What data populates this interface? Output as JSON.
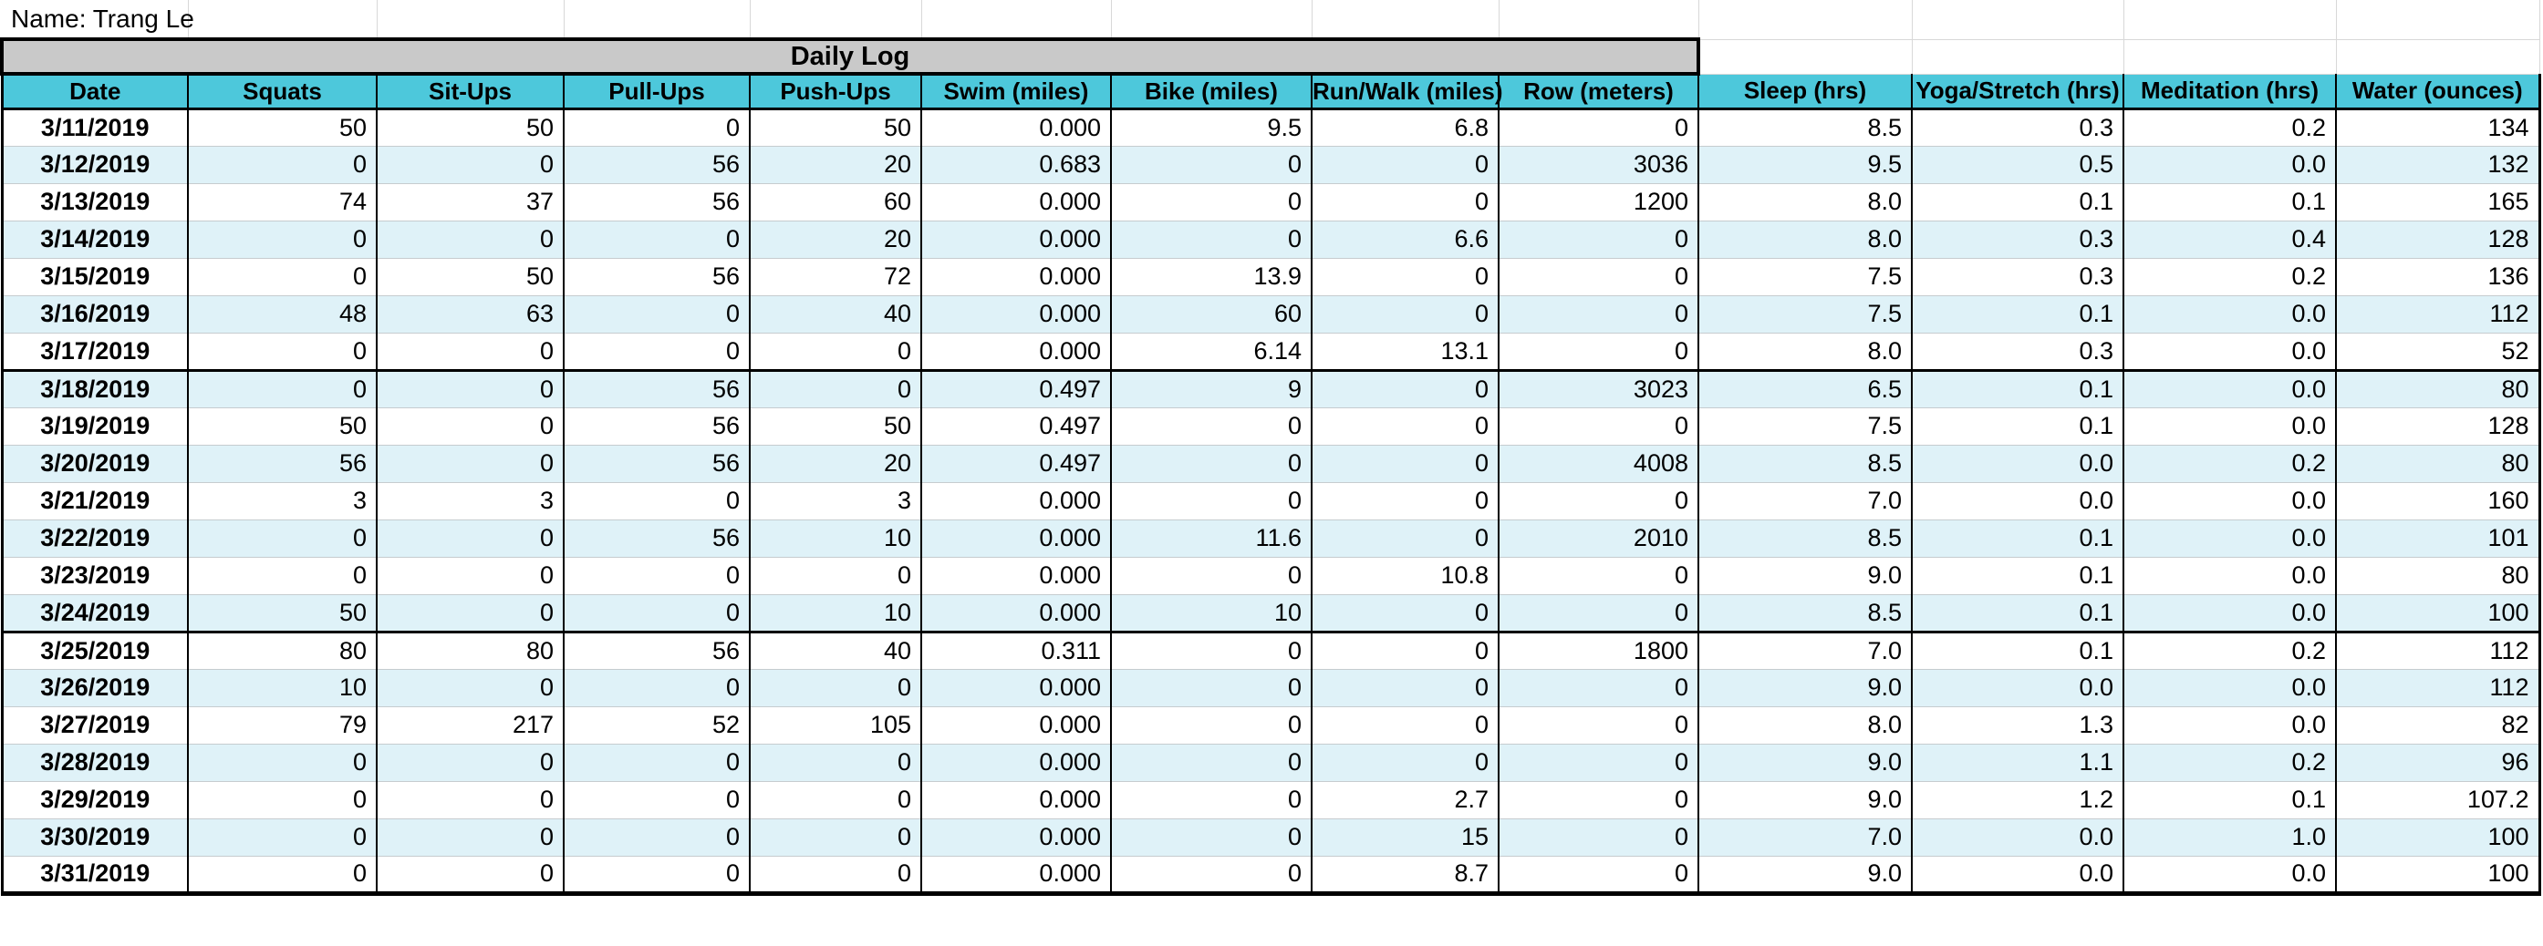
{
  "sheet": {
    "name_label": "Name: Trang Le",
    "title": "Daily Log"
  },
  "colors": {
    "header_fill": "#4DC8DB",
    "band_fill": "#DFF2F8",
    "title_fill": "#C9C9C9",
    "gridline": "#D8D8D8",
    "row_gridline": "#C6CCCF"
  },
  "table": {
    "title_span_columns": 9,
    "columns": [
      "Date",
      "Squats",
      "Sit-Ups",
      "Pull-Ups",
      "Push-Ups",
      "Swim (miles)",
      "Bike (miles)",
      "Run/Walk (miles)",
      "Row (meters)",
      "Sleep (hrs)",
      "Yoga/Stretch (hrs)",
      "Meditation (hrs)",
      "Water (ounces)"
    ],
    "rows": [
      {
        "date": "3/11/2019",
        "values": [
          "50",
          "50",
          "0",
          "50",
          "0.000",
          "9.5",
          "6.8",
          "0",
          "8.5",
          "0.3",
          "0.2",
          "134"
        ]
      },
      {
        "date": "3/12/2019",
        "values": [
          "0",
          "0",
          "56",
          "20",
          "0.683",
          "0",
          "0",
          "3036",
          "9.5",
          "0.5",
          "0.0",
          "132"
        ]
      },
      {
        "date": "3/13/2019",
        "values": [
          "74",
          "37",
          "56",
          "60",
          "0.000",
          "0",
          "0",
          "1200",
          "8.0",
          "0.1",
          "0.1",
          "165"
        ]
      },
      {
        "date": "3/14/2019",
        "values": [
          "0",
          "0",
          "0",
          "20",
          "0.000",
          "0",
          "6.6",
          "0",
          "8.0",
          "0.3",
          "0.4",
          "128"
        ]
      },
      {
        "date": "3/15/2019",
        "values": [
          "0",
          "50",
          "56",
          "72",
          "0.000",
          "13.9",
          "0",
          "0",
          "7.5",
          "0.3",
          "0.2",
          "136"
        ]
      },
      {
        "date": "3/16/2019",
        "values": [
          "48",
          "63",
          "0",
          "40",
          "0.000",
          "60",
          "0",
          "0",
          "7.5",
          "0.1",
          "0.0",
          "112"
        ]
      },
      {
        "date": "3/17/2019",
        "values": [
          "0",
          "0",
          "0",
          "0",
          "0.000",
          "6.14",
          "13.1",
          "0",
          "8.0",
          "0.3",
          "0.0",
          "52"
        ]
      },
      {
        "date": "3/18/2019",
        "values": [
          "0",
          "0",
          "56",
          "0",
          "0.497",
          "9",
          "0",
          "3023",
          "6.5",
          "0.1",
          "0.0",
          "80"
        ]
      },
      {
        "date": "3/19/2019",
        "values": [
          "50",
          "0",
          "56",
          "50",
          "0.497",
          "0",
          "0",
          "0",
          "7.5",
          "0.1",
          "0.0",
          "128"
        ]
      },
      {
        "date": "3/20/2019",
        "values": [
          "56",
          "0",
          "56",
          "20",
          "0.497",
          "0",
          "0",
          "4008",
          "8.5",
          "0.0",
          "0.2",
          "80"
        ]
      },
      {
        "date": "3/21/2019",
        "values": [
          "3",
          "3",
          "0",
          "3",
          "0.000",
          "0",
          "0",
          "0",
          "7.0",
          "0.0",
          "0.0",
          "160"
        ]
      },
      {
        "date": "3/22/2019",
        "values": [
          "0",
          "0",
          "56",
          "10",
          "0.000",
          "11.6",
          "0",
          "2010",
          "8.5",
          "0.1",
          "0.0",
          "101"
        ]
      },
      {
        "date": "3/23/2019",
        "values": [
          "0",
          "0",
          "0",
          "0",
          "0.000",
          "0",
          "10.8",
          "0",
          "9.0",
          "0.1",
          "0.0",
          "80"
        ]
      },
      {
        "date": "3/24/2019",
        "values": [
          "50",
          "0",
          "0",
          "10",
          "0.000",
          "10",
          "0",
          "0",
          "8.5",
          "0.1",
          "0.0",
          "100"
        ]
      },
      {
        "date": "3/25/2019",
        "values": [
          "80",
          "80",
          "56",
          "40",
          "0.311",
          "0",
          "0",
          "1800",
          "7.0",
          "0.1",
          "0.2",
          "112"
        ]
      },
      {
        "date": "3/26/2019",
        "values": [
          "10",
          "0",
          "0",
          "0",
          "0.000",
          "0",
          "0",
          "0",
          "9.0",
          "0.0",
          "0.0",
          "112"
        ]
      },
      {
        "date": "3/27/2019",
        "values": [
          "79",
          "217",
          "52",
          "105",
          "0.000",
          "0",
          "0",
          "0",
          "8.0",
          "1.3",
          "0.0",
          "82"
        ]
      },
      {
        "date": "3/28/2019",
        "values": [
          "0",
          "0",
          "0",
          "0",
          "0.000",
          "0",
          "0",
          "0",
          "9.0",
          "1.1",
          "0.2",
          "96"
        ]
      },
      {
        "date": "3/29/2019",
        "values": [
          "0",
          "0",
          "0",
          "0",
          "0.000",
          "0",
          "2.7",
          "0",
          "9.0",
          "1.2",
          "0.1",
          "107.2"
        ]
      },
      {
        "date": "3/30/2019",
        "values": [
          "0",
          "0",
          "0",
          "0",
          "0.000",
          "0",
          "15",
          "0",
          "7.0",
          "0.0",
          "1.0",
          "100"
        ]
      },
      {
        "date": "3/31/2019",
        "values": [
          "0",
          "0",
          "0",
          "0",
          "0.000",
          "0",
          "8.7",
          "0",
          "9.0",
          "0.0",
          "0.0",
          "100"
        ]
      }
    ]
  }
}
